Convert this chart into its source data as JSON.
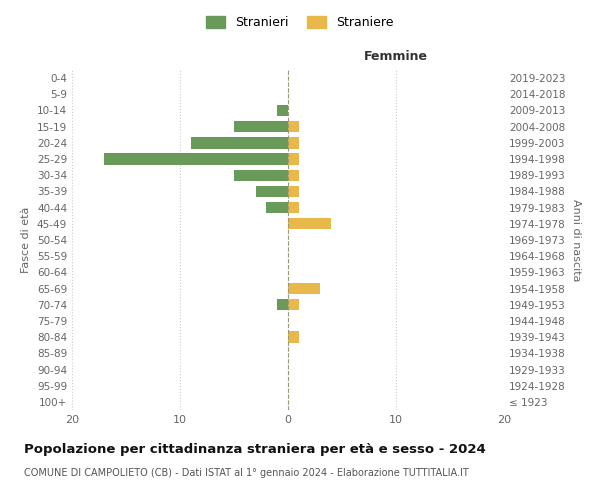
{
  "age_groups": [
    "100+",
    "95-99",
    "90-94",
    "85-89",
    "80-84",
    "75-79",
    "70-74",
    "65-69",
    "60-64",
    "55-59",
    "50-54",
    "45-49",
    "40-44",
    "35-39",
    "30-34",
    "25-29",
    "20-24",
    "15-19",
    "10-14",
    "5-9",
    "0-4"
  ],
  "birth_years": [
    "≤ 1923",
    "1924-1928",
    "1929-1933",
    "1934-1938",
    "1939-1943",
    "1944-1948",
    "1949-1953",
    "1954-1958",
    "1959-1963",
    "1964-1968",
    "1969-1973",
    "1974-1978",
    "1979-1983",
    "1984-1988",
    "1989-1993",
    "1994-1998",
    "1999-2003",
    "2004-2008",
    "2009-2013",
    "2014-2018",
    "2019-2023"
  ],
  "stranieri": [
    0,
    0,
    0,
    0,
    0,
    0,
    1,
    0,
    0,
    0,
    0,
    0,
    2,
    3,
    5,
    17,
    9,
    5,
    1,
    0,
    0
  ],
  "straniere": [
    0,
    0,
    0,
    0,
    1,
    0,
    1,
    3,
    0,
    0,
    0,
    4,
    1,
    1,
    1,
    1,
    1,
    1,
    0,
    0,
    0
  ],
  "color_stranieri": "#6a9a5a",
  "color_straniere": "#e8b84b",
  "title": "Popolazione per cittadinanza straniera per età e sesso - 2024",
  "subtitle": "COMUNE DI CAMPOLIETO (CB) - Dati ISTAT al 1° gennaio 2024 - Elaborazione TUTTITALIA.IT",
  "xlabel_right": "Femmine",
  "ylabel_left": "Fasce di età",
  "ylabel_right": "Anni di nascita",
  "xlim": 20,
  "legend_stranieri": "Stranieri",
  "legend_straniere": "Straniere",
  "bg_color": "#ffffff",
  "grid_color": "#cccccc"
}
